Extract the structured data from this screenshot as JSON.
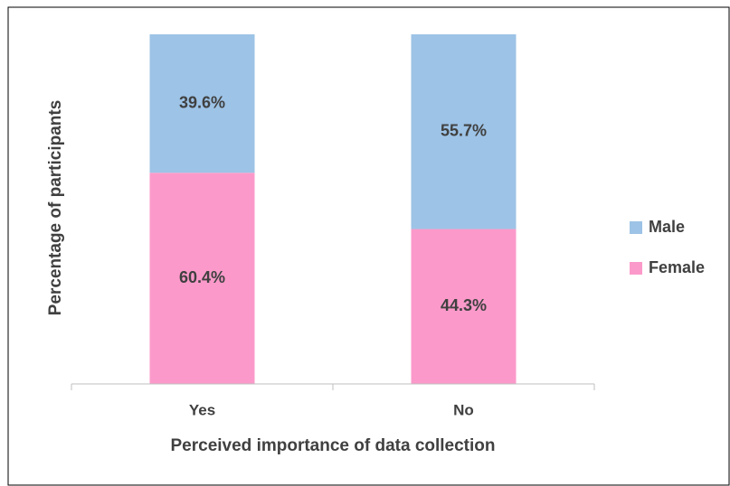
{
  "chart_data": {
    "type": "stacked_bar",
    "x_label": "Perceived importance of data collection",
    "y_label": "Percentage of participants",
    "categories": [
      "Yes",
      "No"
    ],
    "series": [
      {
        "name": "Female",
        "color": "#fb9aca",
        "values": [
          60.4,
          44.3
        ],
        "value_labels": [
          "60.4%",
          "44.3%"
        ]
      },
      {
        "name": "Male",
        "color": "#9dc3e6",
        "values": [
          39.6,
          55.7
        ],
        "value_labels": [
          "39.6%",
          "55.7%"
        ]
      }
    ],
    "ylim": [
      0,
      100
    ],
    "legend": "right"
  }
}
